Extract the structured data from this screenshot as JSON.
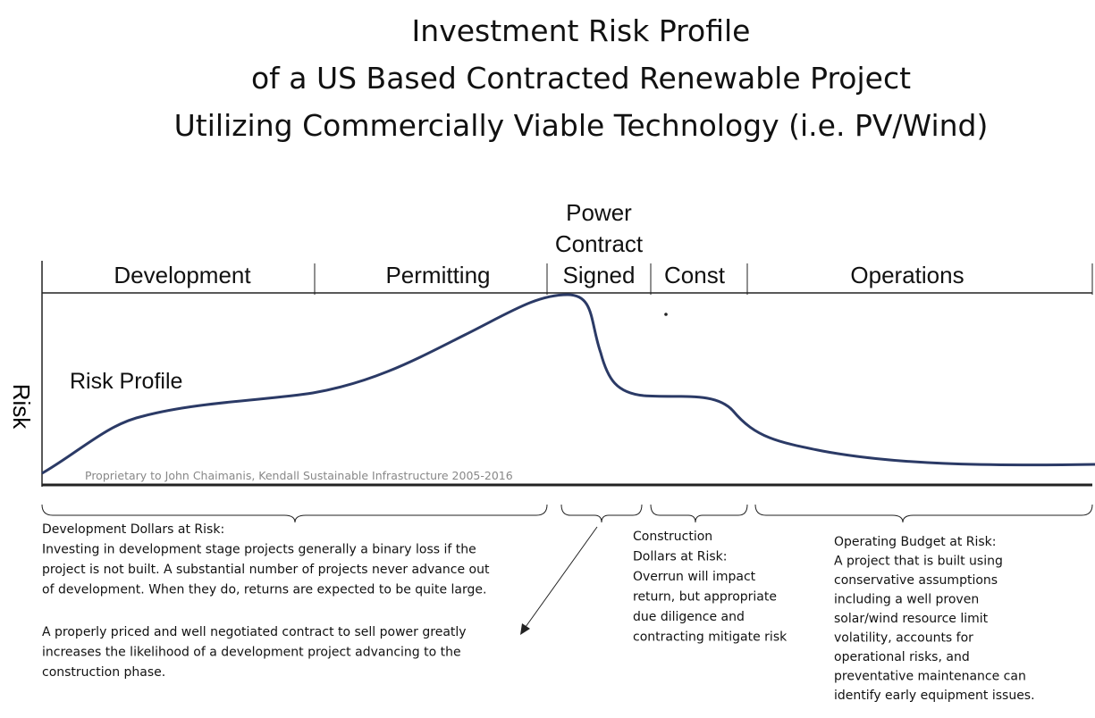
{
  "title": [
    "Investment Risk Profile",
    "of a US Based Contracted Renewable Project",
    "Utilizing Commercially Viable Technology (i.e. PV/Wind)"
  ],
  "phases": [
    "Development",
    "Permitting",
    [
      "Power",
      "Contract",
      "Signed"
    ],
    "Const",
    "Operations"
  ],
  "y_axis_label": "Risk",
  "curve_label": "Risk Profile",
  "copyright": "Proprietary to John Chaimanis, Kendall Sustainable Infrastructure 2005-2016",
  "notes": {
    "development": [
      "Development Dollars at Risk:",
      "Investing in development stage projects generally a binary loss if the",
      "project is not built.  A substantial number of projects never advance out",
      "of development.  When they do, returns are expected to be quite large."
    ],
    "contract": [
      "A properly priced and well negotiated contract to sell power greatly",
      "increases the likelihood of a development project advancing to the",
      "construction phase."
    ],
    "construction": [
      "Construction",
      "Dollars at Risk:",
      "Overrun will impact",
      "return, but appropriate",
      "due diligence and",
      "contracting mitigate risk"
    ],
    "operations": [
      "Operating Budget at Risk:",
      "A project that is built using",
      "conservative assumptions",
      "including a well proven",
      "solar/wind resource limit",
      "volatility, accounts for",
      "operational risks, and",
      "preventative maintenance can",
      "identify early equipment issues."
    ]
  }
}
